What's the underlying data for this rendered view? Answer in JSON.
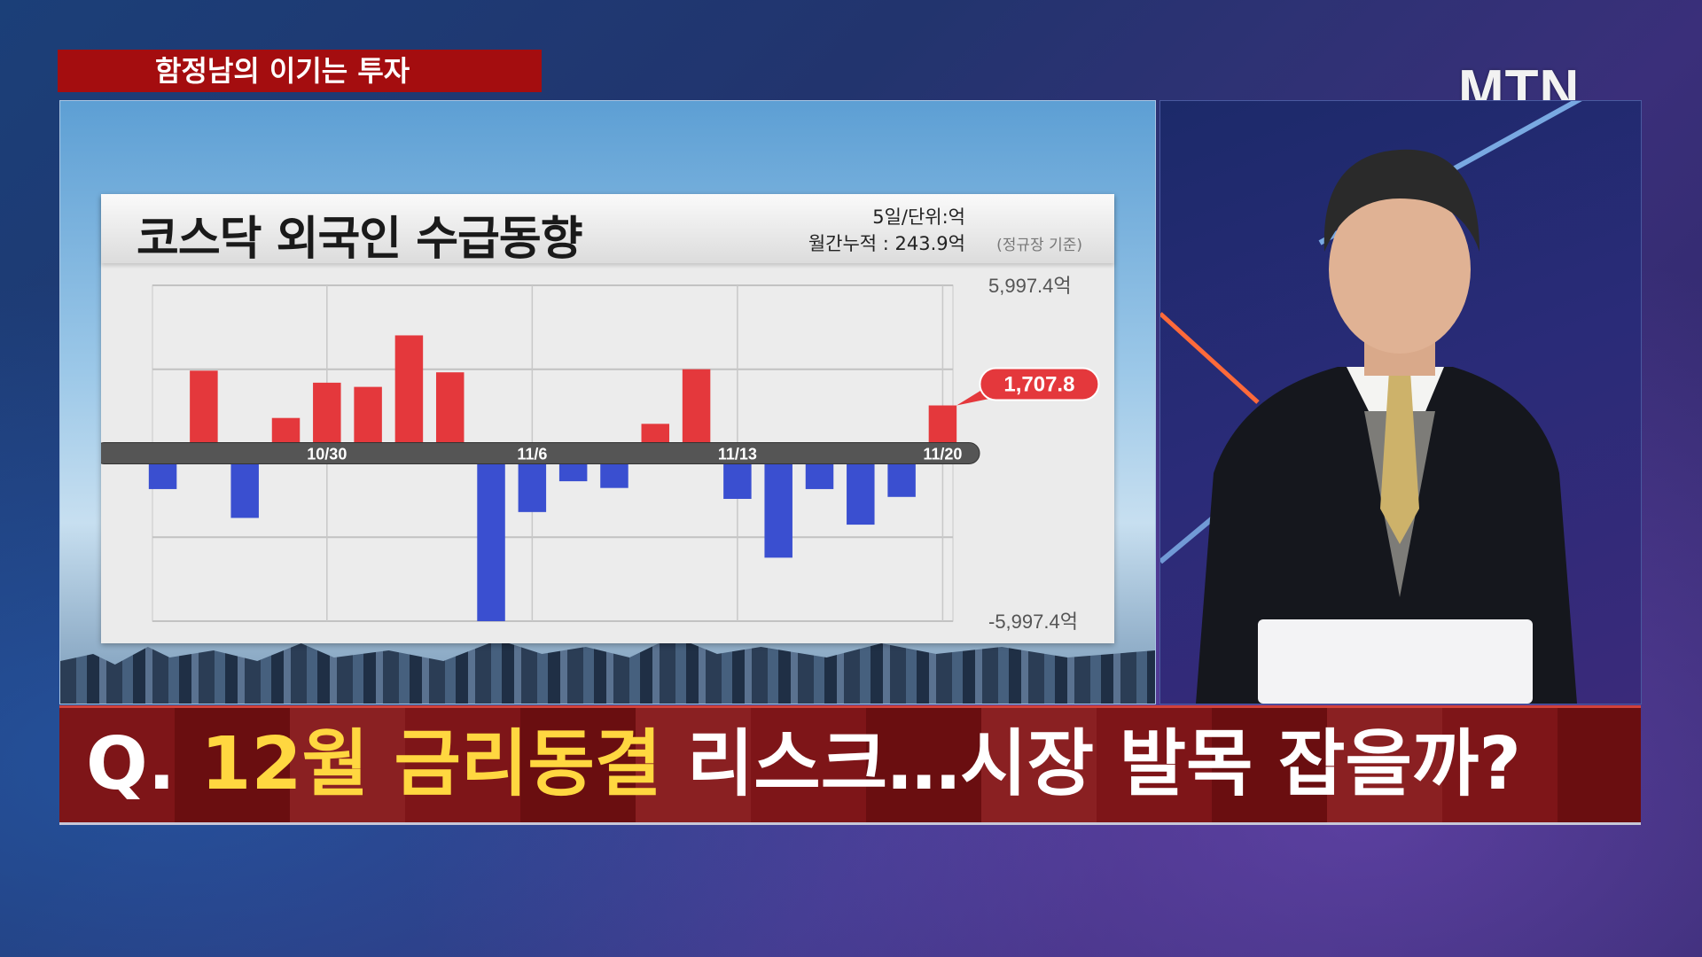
{
  "program_tag": "함정남의 이기는 투자",
  "broadcaster_logo": "MTN",
  "chart_card": {
    "title": "코스닥 외국인 수급동향",
    "meta_line1": "5일/단위:억",
    "meta_line2": "월간누적 : 243.9억",
    "meta_note": "(정규장 기준)"
  },
  "chart_data": {
    "type": "bar",
    "title": "코스닥 외국인 수급동향",
    "unit": "억",
    "x_tick_labels": [
      "10/30",
      "11/6",
      "11/13",
      "11/20"
    ],
    "values": [
      -1280,
      2950,
      -2310,
      1260,
      2520,
      2370,
      4210,
      2890,
      -5997.4,
      -2100,
      -1000,
      -1240,
      1050,
      3000,
      -1630,
      -3730,
      -1280,
      -2550,
      -1560,
      1707.8
    ],
    "tick_positions": [
      4,
      9,
      14,
      19
    ],
    "ylim": [
      -5997.4,
      5997.4
    ],
    "y_labels": {
      "max": "5,997.4억",
      "min": "-5,997.4억"
    },
    "last_value_label": "1,707.8",
    "colors": {
      "positive": "#e4383c",
      "negative": "#3a4fd0"
    },
    "grid": true
  },
  "caption": {
    "prefix": "Q.",
    "highlight": "12월 금리동결",
    "rest": "리스크…시장 발목 잡을까?",
    "highlight_color": "#ffd740"
  }
}
